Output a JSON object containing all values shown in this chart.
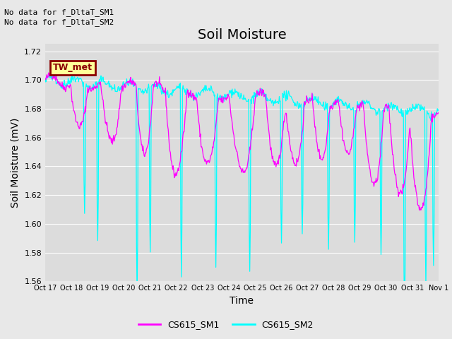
{
  "title": "Soil Moisture",
  "ylabel": "Soil Moisture (mV)",
  "xlabel": "Time",
  "ylim": [
    1.56,
    1.725
  ],
  "yticks": [
    1.56,
    1.58,
    1.6,
    1.62,
    1.64,
    1.66,
    1.68,
    1.7,
    1.72
  ],
  "color_sm1": "#FF00FF",
  "color_sm2": "#00FFFF",
  "legend_labels": [
    "CS615_SM1",
    "CS615_SM2"
  ],
  "annotations": [
    "No data for f_DltaT_SM1",
    "No data for f_DltaT_SM2"
  ],
  "box_label": "TW_met",
  "box_facecolor": "#FFFF99",
  "box_edgecolor": "#8B0000",
  "box_textcolor": "#8B0000",
  "xtick_labels": [
    "Oct 17",
    "Oct 18",
    "Oct 19",
    "Oct 20",
    "Oct 21",
    "Oct 22",
    "Oct 23",
    "Oct 24",
    "Oct 25",
    "Oct 26",
    "Oct 27",
    "Oct 28",
    "Oct 29",
    "Oct 30",
    "Oct 31",
    "Nov 1"
  ],
  "bg_color": "#E8E8E8",
  "plot_bg_color": "#DCDCDC",
  "title_fontsize": 14,
  "label_fontsize": 10,
  "tick_fontsize": 8
}
